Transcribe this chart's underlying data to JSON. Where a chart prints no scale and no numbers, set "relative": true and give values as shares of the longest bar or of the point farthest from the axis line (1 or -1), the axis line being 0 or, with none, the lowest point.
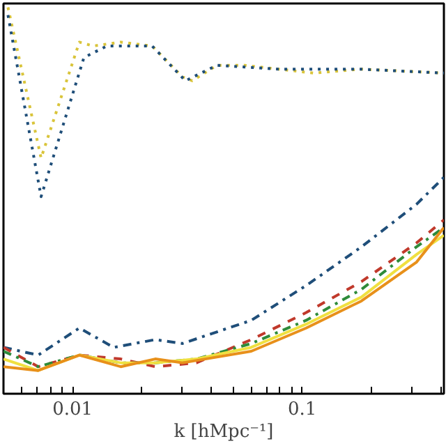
{
  "chart_data": {
    "type": "line",
    "relative": true,
    "log": "x",
    "xlabel": "k [hMpc⁻¹]",
    "xlim": [
      0.005,
      0.414
    ],
    "xticks": [
      {
        "value": 0.005,
        "label": null
      },
      {
        "value": 0.006,
        "label": null
      },
      {
        "value": 0.007,
        "label": null
      },
      {
        "value": 0.008,
        "label": null
      },
      {
        "value": 0.009,
        "label": null
      },
      {
        "value": 0.01,
        "label": "0.01"
      },
      {
        "value": 0.02,
        "label": null
      },
      {
        "value": 0.03,
        "label": null
      },
      {
        "value": 0.04,
        "label": null
      },
      {
        "value": 0.05,
        "label": null
      },
      {
        "value": 0.06,
        "label": null
      },
      {
        "value": 0.07,
        "label": null
      },
      {
        "value": 0.08,
        "label": null
      },
      {
        "value": 0.09,
        "label": null
      },
      {
        "value": 0.1,
        "label": "0.1"
      },
      {
        "value": 0.2,
        "label": null
      },
      {
        "value": 0.3,
        "label": null
      },
      {
        "value": 0.4,
        "label": null
      }
    ],
    "grid": false,
    "marker": "none",
    "series": [
      {
        "color": "#d9c43a",
        "line_style": "dotted",
        "x": [
          0.00523,
          0.00729,
          0.0107,
          0.0123,
          0.0162,
          0.0222,
          0.0301,
          0.0332,
          0.0425,
          0.0561,
          0.0791,
          0.112,
          0.181,
          0.414
        ],
        "values": [
          1.0,
          0.61,
          0.91,
          0.9,
          0.91,
          0.9,
          0.82,
          0.81,
          0.85,
          0.85,
          0.84,
          0.83,
          0.84,
          0.83
        ]
      },
      {
        "color": "#1f4e79",
        "line_style": "dotted",
        "x": [
          0.00523,
          0.00729,
          0.0112,
          0.0141,
          0.0222,
          0.031,
          0.0425,
          0.0791,
          0.181,
          0.414
        ],
        "values": [
          0.98,
          0.51,
          0.87,
          0.9,
          0.9,
          0.81,
          0.85,
          0.84,
          0.84,
          0.83
        ]
      },
      {
        "color": "#1f4e79",
        "line_style": "dashdot",
        "x": [
          0.005,
          0.00708,
          0.0107,
          0.0151,
          0.0229,
          0.0301,
          0.06,
          0.104,
          0.181,
          0.314,
          0.414
        ],
        "values": [
          0.12,
          0.1,
          0.17,
          0.12,
          0.14,
          0.13,
          0.19,
          0.28,
          0.38,
          0.49,
          0.56
        ]
      },
      {
        "color": "#c0392b",
        "line_style": "dashed",
        "x": [
          0.005,
          0.00708,
          0.0107,
          0.0162,
          0.0229,
          0.0346,
          0.06,
          0.104,
          0.181,
          0.314,
          0.414
        ],
        "values": [
          0.12,
          0.07,
          0.1,
          0.09,
          0.07,
          0.08,
          0.14,
          0.21,
          0.29,
          0.39,
          0.45
        ]
      },
      {
        "color": "#2e8b3a",
        "line_style": "dashdot",
        "x": [
          0.005,
          0.00708,
          0.0107,
          0.0162,
          0.0229,
          0.0346,
          0.06,
          0.104,
          0.181,
          0.314,
          0.414
        ],
        "values": [
          0.11,
          0.07,
          0.1,
          0.08,
          0.08,
          0.09,
          0.13,
          0.19,
          0.27,
          0.38,
          0.43
        ]
      },
      {
        "color": "#f0e040",
        "line_style": "solid",
        "x": [
          0.005,
          0.00708,
          0.0107,
          0.0162,
          0.0229,
          0.0346,
          0.06,
          0.104,
          0.181,
          0.314,
          0.414
        ],
        "values": [
          0.09,
          0.06,
          0.1,
          0.08,
          0.08,
          0.09,
          0.12,
          0.18,
          0.25,
          0.36,
          0.41
        ]
      },
      {
        "color": "#e8901a",
        "line_style": "solid",
        "x": [
          0.005,
          0.00708,
          0.0107,
          0.0162,
          0.0229,
          0.0301,
          0.06,
          0.104,
          0.181,
          0.314,
          0.414
        ],
        "values": [
          0.07,
          0.06,
          0.1,
          0.07,
          0.09,
          0.08,
          0.11,
          0.17,
          0.24,
          0.34,
          0.43
        ]
      }
    ]
  }
}
